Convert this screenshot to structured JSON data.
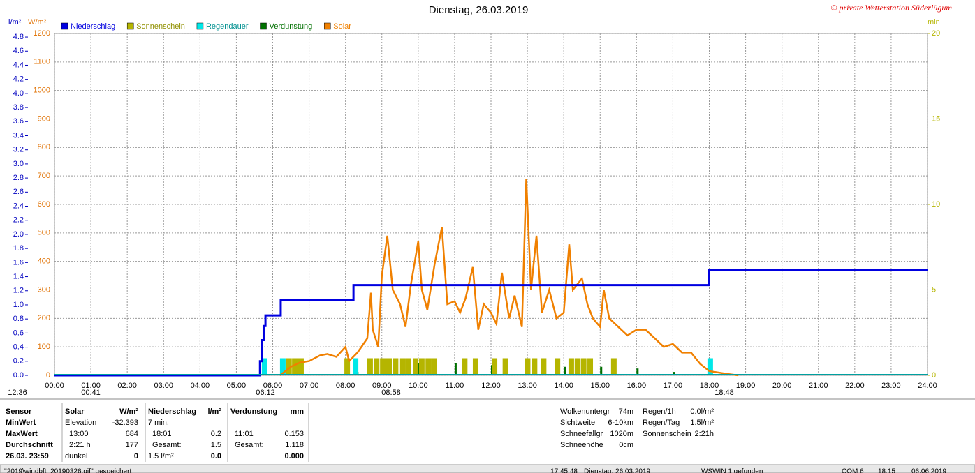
{
  "chart_data": {
    "type": "line",
    "title": "Dienstag, 26.03.2019",
    "credit": "© private Wetterstation Süderlügum",
    "y_unit": "l/m²",
    "y2_unit": "W/m²",
    "y3_unit": "min",
    "xlim": [
      0,
      24
    ],
    "xticks": [
      {
        "value": 0,
        "label": "00:00"
      },
      {
        "value": 1,
        "label": "01:00"
      },
      {
        "value": 2,
        "label": "02:00"
      },
      {
        "value": 3,
        "label": "03:00"
      },
      {
        "value": 4,
        "label": "04:00"
      },
      {
        "value": 5,
        "label": "05:00"
      },
      {
        "value": 6,
        "label": "06:00"
      },
      {
        "value": 7,
        "label": "07:00"
      },
      {
        "value": 8,
        "label": "08:00"
      },
      {
        "value": 9,
        "label": "09:00"
      },
      {
        "value": 10,
        "label": "10:00"
      },
      {
        "value": 11,
        "label": "11:00"
      },
      {
        "value": 12,
        "label": "12:00"
      },
      {
        "value": 13,
        "label": "13:00"
      },
      {
        "value": 14,
        "label": "14:00"
      },
      {
        "value": 15,
        "label": "15:00"
      },
      {
        "value": 16,
        "label": "16:00"
      },
      {
        "value": 17,
        "label": "17:00"
      },
      {
        "value": 18,
        "label": "18:00"
      },
      {
        "value": 19,
        "label": "19:00"
      },
      {
        "value": 20,
        "label": "20:00"
      },
      {
        "value": 21,
        "label": "21:00"
      },
      {
        "value": 22,
        "label": "22:00"
      },
      {
        "value": 23,
        "label": "23:00"
      },
      {
        "value": 24,
        "label": "24:00"
      }
    ],
    "ylim": [
      0,
      4.85
    ],
    "yticks": [
      {
        "value": 0,
        "label": "0.0"
      },
      0.2,
      0.4,
      0.6,
      0.8,
      {
        "value": 1,
        "label": "1.0"
      },
      1.2,
      1.4,
      1.6,
      1.8,
      {
        "value": 2,
        "label": "2.0"
      },
      2.2,
      2.4,
      2.6,
      2.8,
      {
        "value": 3,
        "label": "3.0"
      },
      3.2,
      3.4,
      3.6,
      3.8,
      {
        "value": 4,
        "label": "4.0"
      },
      4.2,
      4.4,
      4.6,
      4.8
    ],
    "y2lim": [
      0,
      1200
    ],
    "y2ticks": [
      0,
      100,
      200,
      300,
      400,
      500,
      600,
      700,
      800,
      900,
      1000,
      1100,
      1200
    ],
    "y3lim": [
      0,
      20
    ],
    "y3ticks": [
      0,
      5,
      10,
      15,
      20
    ],
    "grid": true,
    "series": [
      {
        "name": "Niederschlag",
        "color": "#0000e0",
        "kind": "step",
        "axis": "y",
        "x": [
          0,
          5.62,
          5.65,
          5.7,
          5.75,
          5.8,
          6.22,
          8.22,
          18.0,
          24
        ],
        "values": [
          0,
          0,
          0.2,
          0.5,
          0.7,
          0.85,
          1.07,
          1.28,
          1.5,
          1.5
        ]
      },
      {
        "name": "Sonnenschein",
        "color": "#b5b500",
        "kind": "bars",
        "axis": "y3",
        "x": [
          6.37,
          6.53,
          6.7,
          7.97,
          8.6,
          8.78,
          8.95,
          9.12,
          9.3,
          9.5,
          9.65,
          9.85,
          10.02,
          10.2,
          10.35,
          11.2,
          11.5,
          12.02,
          12.32,
          12.93,
          13.12,
          13.37,
          13.75,
          14.13,
          14.3,
          14.47,
          14.65,
          15.3
        ],
        "values": [
          1,
          1,
          1,
          1,
          1,
          1,
          1,
          1,
          1,
          1,
          1,
          1,
          1,
          1,
          1,
          1,
          1,
          1,
          1,
          1,
          1,
          1,
          1,
          1,
          1,
          1,
          1,
          1
        ]
      },
      {
        "name": "Regendauer",
        "color": "#00e8e8",
        "kind": "bars",
        "axis": "y3",
        "x": [
          5.7,
          6.2,
          8.2,
          17.95
        ],
        "values": [
          1,
          1,
          1,
          1
        ]
      },
      {
        "name": "Verdunstung",
        "color": "#007000",
        "kind": "bars",
        "axis": "y3",
        "x": [
          8.3,
          9.0,
          10.0,
          11.0,
          12.0,
          13.0,
          14.0,
          15.0,
          16.0,
          17.0
        ],
        "values": [
          0.2,
          0.4,
          0.7,
          0.7,
          0.6,
          0.6,
          0.5,
          0.5,
          0.4,
          0.2
        ]
      },
      {
        "name": "Solar",
        "color": "#f08000",
        "kind": "line",
        "axis": "y2",
        "x": [
          6.2,
          6.5,
          6.75,
          7.0,
          7.3,
          7.5,
          7.75,
          8.0,
          8.1,
          8.33,
          8.6,
          8.7,
          8.75,
          8.9,
          9.0,
          9.15,
          9.3,
          9.5,
          9.65,
          9.8,
          10.0,
          10.1,
          10.25,
          10.45,
          10.65,
          10.8,
          11.0,
          11.15,
          11.3,
          11.5,
          11.65,
          11.8,
          12.0,
          12.15,
          12.3,
          12.5,
          12.65,
          12.85,
          12.97,
          13.1,
          13.25,
          13.4,
          13.6,
          13.8,
          14.0,
          14.15,
          14.25,
          14.5,
          14.65,
          14.8,
          15.0,
          15.1,
          15.25,
          15.5,
          15.75,
          16.0,
          16.25,
          16.5,
          16.75,
          17.0,
          17.25,
          17.5,
          17.75,
          18.0,
          18.5,
          18.8
        ],
        "values": [
          0,
          30,
          45,
          50,
          70,
          75,
          65,
          100,
          50,
          80,
          130,
          290,
          160,
          100,
          350,
          490,
          300,
          250,
          170,
          320,
          470,
          300,
          230,
          390,
          520,
          250,
          260,
          220,
          270,
          380,
          160,
          250,
          220,
          180,
          360,
          200,
          280,
          170,
          690,
          300,
          490,
          220,
          300,
          200,
          220,
          460,
          300,
          340,
          250,
          200,
          170,
          300,
          200,
          170,
          140,
          160,
          160,
          130,
          100,
          110,
          80,
          80,
          40,
          15,
          5,
          0
        ]
      }
    ],
    "annotations": [
      "12:36",
      "00:41",
      "06:12",
      "08:58",
      "18:48"
    ]
  },
  "info": {
    "columns": [
      {
        "head": "Sensor",
        "rows": [
          "MinWert",
          "MaxWert",
          "Durchschnitt",
          "26.03. 23:59"
        ]
      },
      {
        "head": "Solar",
        "unit": "W/m²",
        "rows": [
          "Elevation",
          "13:00",
          "2:21 h",
          "dunkel"
        ],
        "vals": [
          "-32.393",
          "684",
          "177",
          "0"
        ]
      },
      {
        "head": "Niederschlag",
        "unit": "l/m²",
        "rows": [
          "7 min.",
          "18:01",
          "Gesamt:",
          "1.5 l/m²"
        ],
        "vals": [
          "",
          "0.2",
          "1.5",
          "0.0"
        ]
      },
      {
        "head": "Verdunstung",
        "unit": "mm",
        "rows": [
          "",
          "11:01",
          "Gesamt:",
          ""
        ],
        "vals": [
          "",
          "0.153",
          "1.118",
          "0.000"
        ]
      }
    ],
    "extra1": [
      [
        "Wolkenuntergr",
        "74m"
      ],
      [
        "Sichtweite",
        "6-10km"
      ],
      [
        "Schneefallgr",
        "1020m"
      ],
      [
        "Schneehöhe",
        "0cm"
      ]
    ],
    "extra2": [
      [
        "Regen/1h",
        "0.0l/m²"
      ],
      [
        "Regen/Tag",
        "1.5l/m²"
      ],
      [
        "Sonnenschein",
        "2:21h"
      ]
    ]
  },
  "status": [
    "''2019\\windbft_20190326.gif'' gespeichert",
    "17:45:48",
    "Dienstag, 26.03.2019",
    "WSWIN 1 gefunden",
    "COM 6",
    "18:15",
    "06.06.2019"
  ]
}
